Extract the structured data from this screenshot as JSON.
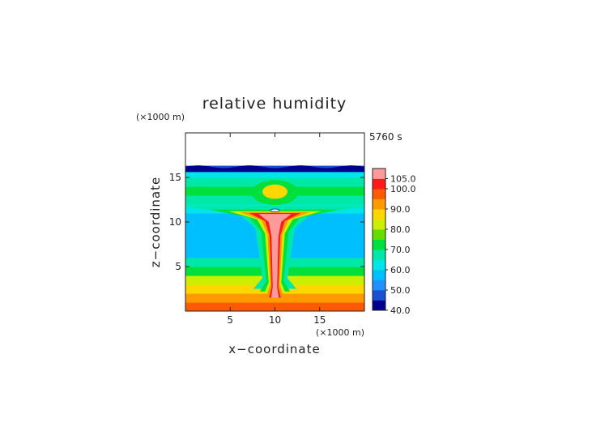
{
  "chart_data": {
    "type": "heatmap",
    "title": "relative humidity",
    "time_label": "5760 s",
    "xlabel": "x−coordinate",
    "ylabel": "z−coordinate",
    "x_unit": "(×1000 m)",
    "y_unit": "(×1000 m)",
    "xlim": [
      0,
      20
    ],
    "ylim": [
      0,
      20
    ],
    "x_ticks": [
      5,
      10,
      15
    ],
    "y_ticks": [
      5,
      10,
      15
    ],
    "colorbar": {
      "levels": [
        40,
        45,
        50,
        55,
        60,
        65,
        70,
        75,
        80,
        85,
        90,
        95,
        100,
        105
      ],
      "labels": [
        "40.0",
        "50.0",
        "60.0",
        "70.0",
        "80.0",
        "90.0",
        "100.0",
        "105.0"
      ],
      "colors": [
        "#00008c",
        "#1a4fd1",
        "#1e90ff",
        "#00bfff",
        "#00e5e5",
        "#00e8a8",
        "#00e03c",
        "#66dd00",
        "#ccee00",
        "#ffd700",
        "#ff9900",
        "#ff5a00",
        "#ff1a1a",
        "#ff9a9a"
      ]
    },
    "grid": false,
    "field_notes": "moist convective plume centered at x=10; humidity layer peaks near z=11; dry layer above z=16",
    "humidity_profile_far_field": {
      "z": [
        0,
        1,
        2,
        3,
        4,
        5,
        6,
        7,
        8,
        9,
        10,
        11,
        12,
        13,
        14,
        15,
        15.8,
        16.3
      ],
      "rh": [
        95,
        92,
        88,
        80,
        72,
        65,
        58,
        56,
        56,
        57,
        59,
        62,
        66,
        70,
        66,
        60,
        45,
        42
      ]
    }
  }
}
